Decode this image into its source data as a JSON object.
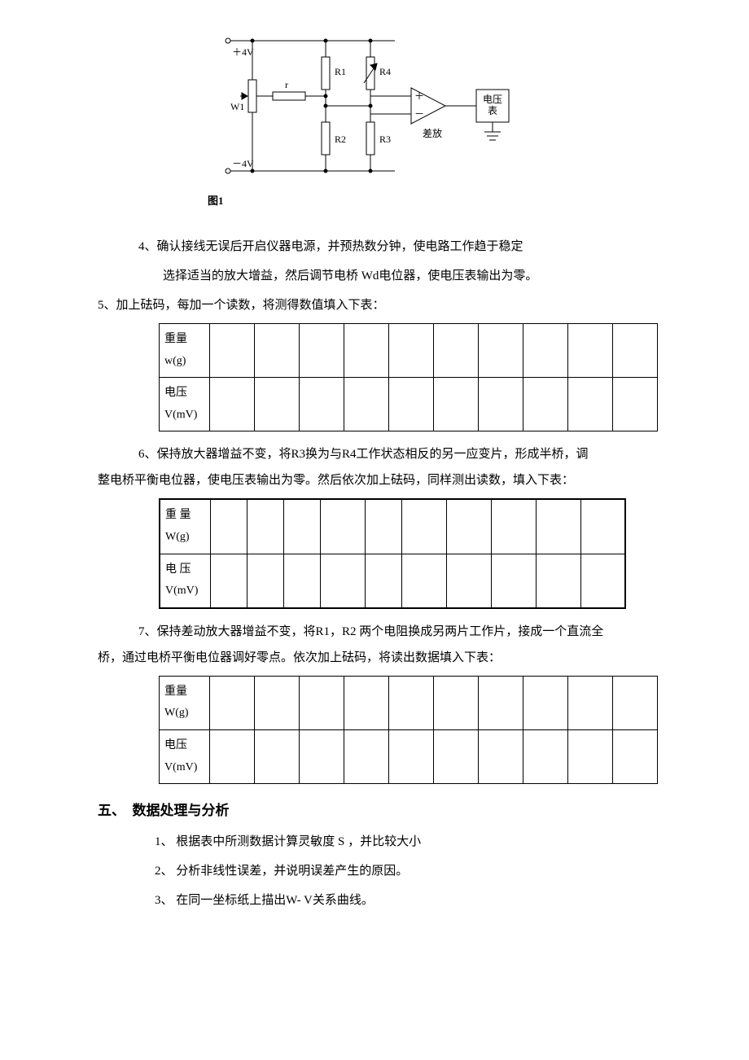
{
  "circuit": {
    "labels": {
      "plus4v": "＋4V",
      "minus4v": "－4V",
      "W1": "W1",
      "r": "r",
      "R1": "R1",
      "R2": "R2",
      "R3": "R3",
      "R4": "R4",
      "plus": "＋",
      "minus": "－",
      "amp": "差放",
      "meter_l1": "电压",
      "meter_l2": "表"
    },
    "fig_caption": "图1"
  },
  "para": {
    "p4_line1": "4、确认接线无误后开启仪器电源，并预热数分钟，使电路工作趋于稳定",
    "p4_line2": "选择适当的放大增益，然后调节电桥 Wd电位器，使电压表输出为零。",
    "p5": "5、加上砝码，每加一个读数，将测得数值填入下表：",
    "p6": "6、保持放大器增益不变，将R3换为与R4工作状态相反的另一应变片，形成半桥，调",
    "p6b": "整电桥平衡电位器，使电压表输出为零。然后依次加上砝码，同样测出读数，填入下表：",
    "p7": "7、保持差动放大器增益不变，将R1，R2 两个电阻换成另两片工作片，接成一个直流全",
    "p7b": "桥，通过电桥平衡电位器调好零点。依次加上砝码，将读出数据填入下表："
  },
  "tables": {
    "t1": {
      "row1": "重量\nw(g)",
      "row2": "电压\nV(mV)",
      "col_widths": {
        "first": 62,
        "others": [
          55,
          55,
          55,
          55,
          55,
          55,
          55,
          55,
          55,
          55
        ]
      }
    },
    "t2": {
      "row1": "重 量\nW(g)",
      "row2": "电 压\nV(mV)",
      "col_widths": {
        "first": 62,
        "others": [
          45,
          45,
          45,
          55,
          45,
          55,
          55,
          55,
          55,
          55
        ]
      }
    },
    "t3": {
      "row1": "重量\nW(g)",
      "row2": "电压\nV(mV)",
      "col_widths": {
        "first": 62,
        "others": [
          55,
          55,
          55,
          55,
          55,
          55,
          55,
          55,
          55,
          55
        ]
      }
    }
  },
  "section5": {
    "heading": "五、　数据处理与分析",
    "items": [
      "1、 根据表中所测数据计算灵敏度 S ，并比较大小",
      "2、 分析非线性误差，并说明误差产生的原因。",
      "3、 在同一坐标纸上描出W- V关系曲线。"
    ]
  }
}
